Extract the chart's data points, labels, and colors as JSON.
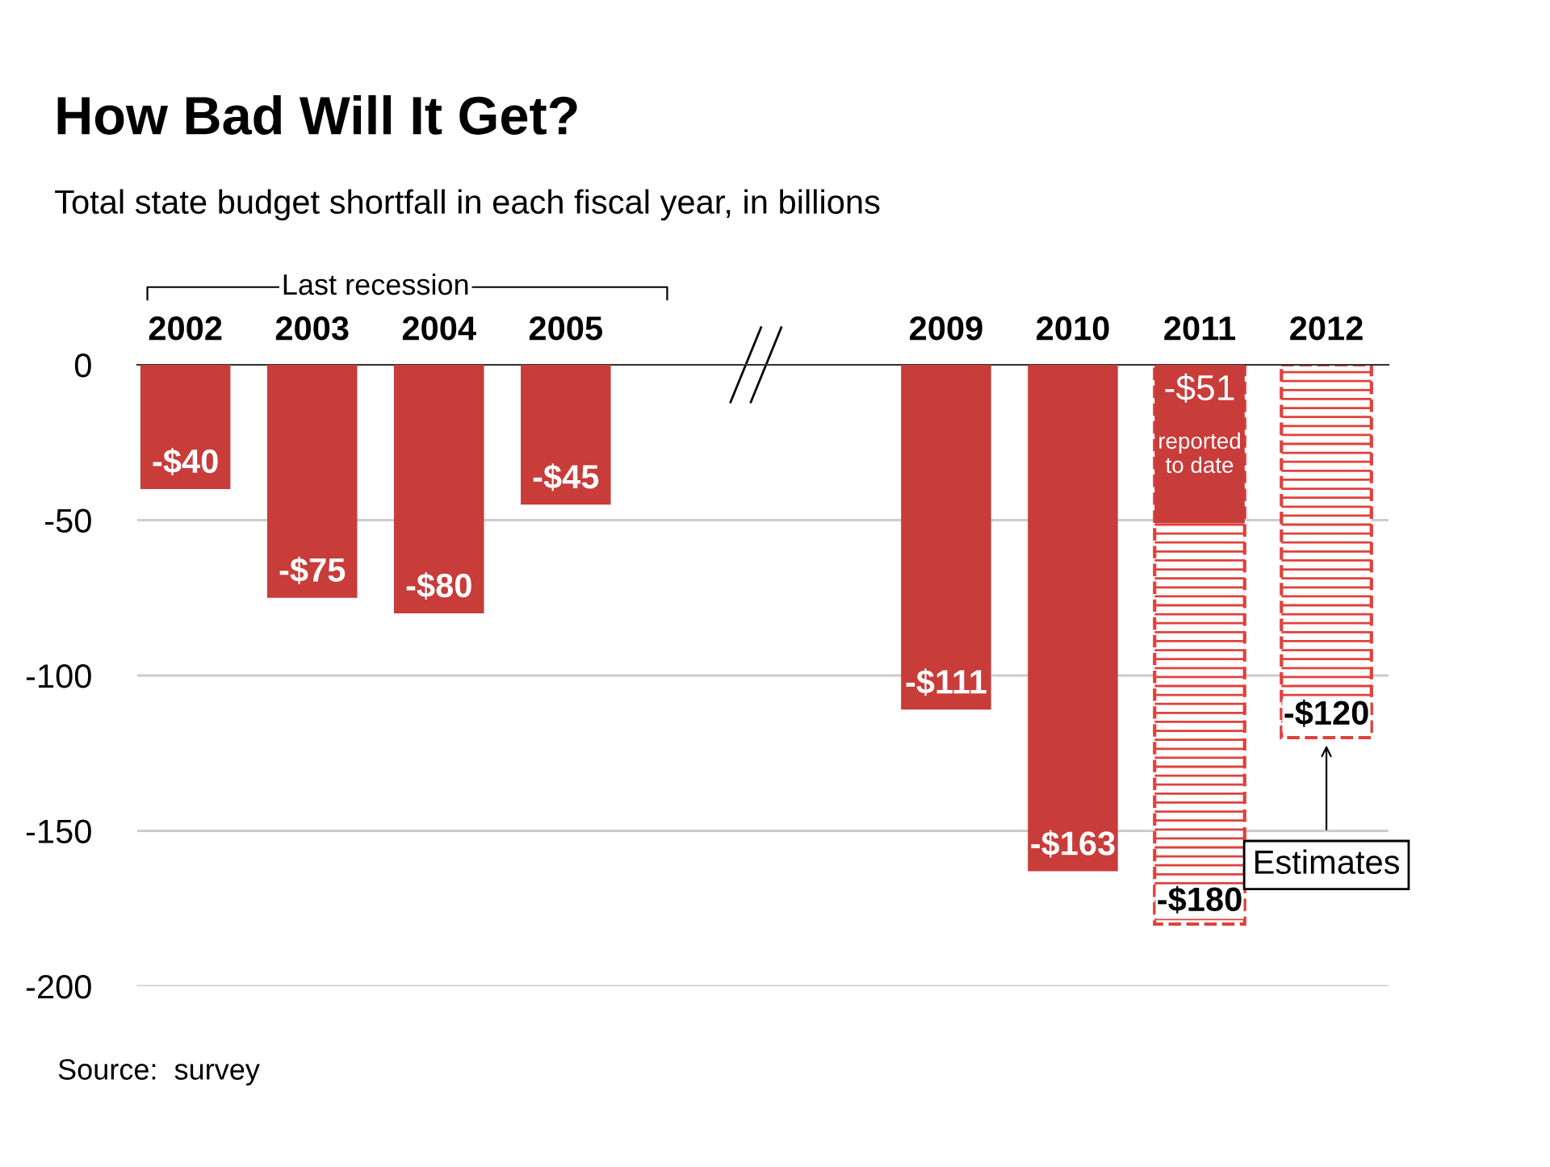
{
  "chart_data": {
    "type": "bar",
    "title": "How Bad Will It Get?",
    "subtitle": "Total state budget shortfall in each fiscal year, in billions",
    "categories": [
      "2002",
      "2003",
      "2004",
      "2005",
      null,
      null,
      "2009",
      "2010",
      "2011",
      "2012"
    ],
    "series": [
      {
        "color": "#c83c3a",
        "values": [
          -40,
          -75,
          -80,
          -45,
          null,
          null,
          -111,
          -163,
          -51,
          null
        ],
        "value_labels": [
          "-$40",
          "-$75",
          "-$80",
          "-$45",
          null,
          null,
          "-$111",
          "-$163",
          "-$51",
          null
        ]
      },
      {
        "color": "#e0413c",
        "line_style": "dashed",
        "values": [
          null,
          null,
          null,
          null,
          null,
          null,
          null,
          null,
          -180,
          -120
        ],
        "value_labels": [
          null,
          null,
          null,
          null,
          null,
          null,
          null,
          null,
          "-$180",
          "-$120"
        ]
      }
    ],
    "ylim": [
      -200,
      0
    ],
    "yticks": [
      0,
      -50,
      -100,
      -150,
      -200
    ],
    "grid": "y",
    "annotations": [
      {
        "text": "Last recession",
        "x": "2003",
        "y": 0
      },
      {
        "text": "reported\nto date",
        "x": "2011",
        "y": -51
      },
      {
        "text": "Estimates",
        "x": "2012",
        "y": -120
      },
      "Source:  survey"
    ]
  }
}
